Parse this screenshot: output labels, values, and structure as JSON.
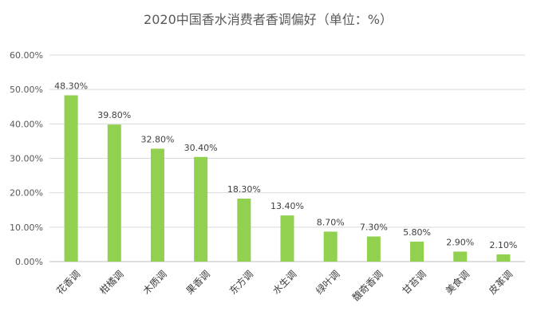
{
  "chart_data": {
    "type": "bar",
    "title": "2020中国香水消费者香调偏好（单位：%）",
    "categories": [
      "花香调",
      "柑橘调",
      "木质调",
      "果香调",
      "东方调",
      "水生调",
      "绿叶调",
      "馥奇香调",
      "甘苔调",
      "美食调",
      "皮革调"
    ],
    "values": [
      48.3,
      39.8,
      32.8,
      30.4,
      18.3,
      13.4,
      8.7,
      7.3,
      5.8,
      2.9,
      2.1
    ],
    "data_labels": [
      "48.30%",
      "39.80%",
      "32.80%",
      "30.40%",
      "18.30%",
      "13.40%",
      "8.70%",
      "7.30%",
      "5.80%",
      "2.90%",
      "2.10%"
    ],
    "y_ticks": [
      "0.00%",
      "10.00%",
      "20.00%",
      "30.00%",
      "40.00%",
      "50.00%",
      "60.00%"
    ],
    "ylim": [
      0,
      60
    ],
    "xlabel": "",
    "ylabel": "",
    "grid": true,
    "legend": "none",
    "colors": {
      "bar": "#92D050",
      "grid": "#D9D9D9",
      "axis": "#BFBFBF"
    }
  }
}
